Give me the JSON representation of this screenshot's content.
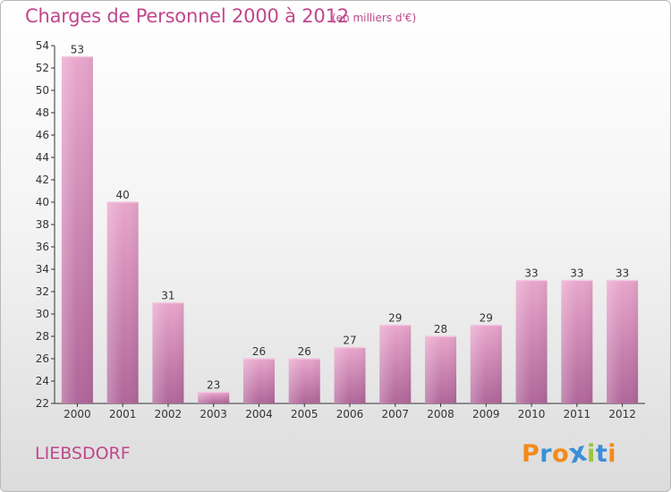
{
  "header": {
    "title": "Charges de Personnel 2000 à 2012",
    "subtitle": "(en milliers d'€)"
  },
  "footer": {
    "commune": "LIEBSDORF",
    "logo": {
      "text": "Proxiti",
      "letter_colors": [
        "#f28a1b",
        "#3b8fd6",
        "#f28a1b",
        "#3b8fd6",
        "#9ac43c",
        "#3b8fd6",
        "#f28a1b"
      ]
    }
  },
  "colors": {
    "accent": "#c0478c",
    "bar_top": "#e9a6cc",
    "bar_bottom": "#b0669a",
    "axis": "#333333"
  },
  "chart_data": {
    "type": "bar",
    "categories": [
      "2000",
      "2001",
      "2002",
      "2003",
      "2004",
      "2005",
      "2006",
      "2007",
      "2008",
      "2009",
      "2010",
      "2011",
      "2012"
    ],
    "values": [
      53,
      40,
      31,
      23,
      26,
      26,
      27,
      29,
      28,
      29,
      33,
      33,
      33
    ],
    "ylim": [
      22,
      54
    ],
    "yticks": [
      22,
      24,
      26,
      28,
      30,
      32,
      34,
      36,
      38,
      40,
      42,
      44,
      46,
      48,
      50,
      52,
      54
    ],
    "grid": false,
    "legend": "none"
  }
}
